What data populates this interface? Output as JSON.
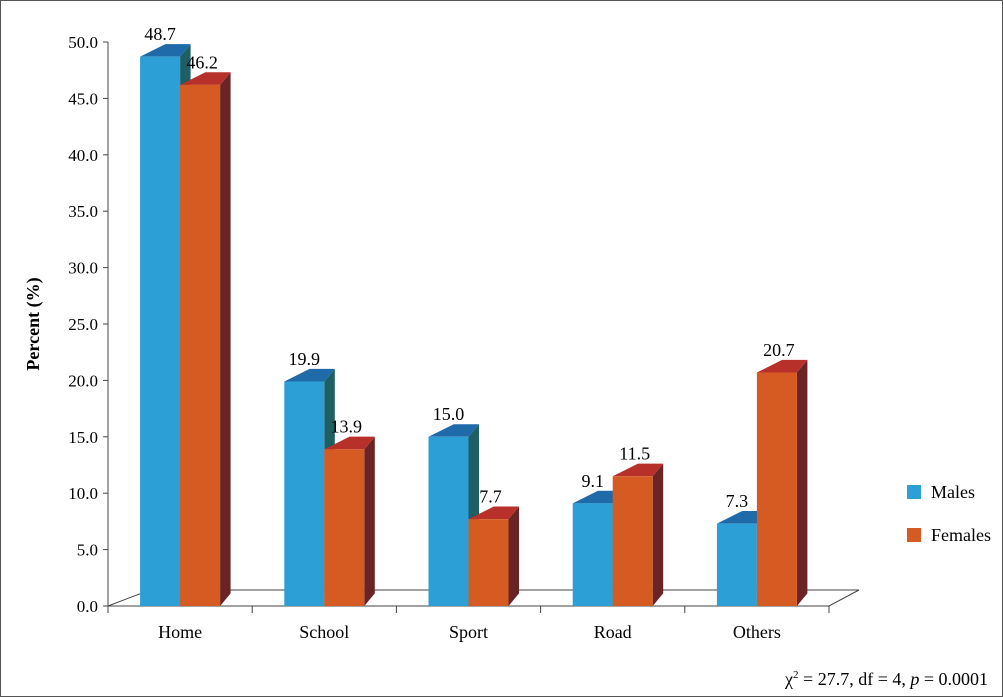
{
  "chart_data": {
    "type": "bar",
    "categories": [
      "Home",
      "School",
      "Sport",
      "Road",
      "Others"
    ],
    "series": [
      {
        "name": "Males",
        "color": "#2b9fd6",
        "values": [
          48.7,
          19.9,
          15.0,
          9.1,
          7.3
        ]
      },
      {
        "name": "Females",
        "color": "#d55b22",
        "values": [
          46.2,
          13.9,
          7.7,
          11.5,
          20.7
        ]
      }
    ],
    "ylabel": "Percent (%)",
    "xlabel": "",
    "ylim": [
      0,
      50
    ],
    "yticks": [
      "0.0",
      "5.0",
      "10.0",
      "15.0",
      "20.0",
      "25.0",
      "30.0",
      "35.0",
      "40.0",
      "45.0",
      "50.0"
    ],
    "value_labels": [
      [
        "48.7",
        "19.9",
        "15.0",
        "9.1",
        "7.3"
      ],
      [
        "46.2",
        "13.9",
        "7.7",
        "11.5",
        "20.7"
      ]
    ],
    "legend_position": "right",
    "style": "3d"
  },
  "stats": {
    "chi_symbol": "χ",
    "exponent": "2",
    "text_a": " = 27.7, df = 4, ",
    "p_symbol": "p",
    "text_b": " = 0.0001"
  }
}
